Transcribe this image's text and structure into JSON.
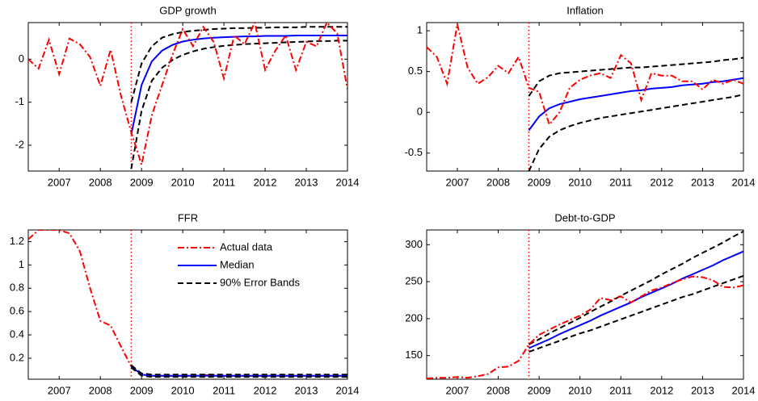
{
  "chart_data": [
    {
      "type": "line",
      "title": "GDP growth",
      "x": [
        2006.25,
        2006.5,
        2006.75,
        2007,
        2007.25,
        2007.5,
        2007.75,
        2008,
        2008.25,
        2008.5,
        2008.75,
        2009,
        2009.25,
        2009.5,
        2009.75,
        2010,
        2010.25,
        2010.5,
        2010.75,
        2011,
        2011.25,
        2011.5,
        2011.75,
        2012,
        2012.25,
        2012.5,
        2012.75,
        2013,
        2013.25,
        2013.5,
        2013.75,
        2014
      ],
      "xlim": [
        2006.25,
        2014
      ],
      "xticks": [
        2007,
        2008,
        2009,
        2010,
        2011,
        2012,
        2013,
        2014
      ],
      "ylim": [
        -2.6,
        0.85
      ],
      "yticks": [
        -2,
        -1,
        0
      ],
      "vline": 2008.75,
      "series": [
        {
          "color": "#000000",
          "style": "dashed",
          "lower": [
            null,
            null,
            null,
            null,
            null,
            null,
            null,
            null,
            null,
            null,
            -2.55,
            -1.2,
            -0.5,
            -0.2,
            -0.02,
            0.1,
            0.18,
            0.24,
            0.28,
            0.31,
            0.33,
            0.35,
            0.36,
            0.37,
            0.38,
            0.39,
            0.4,
            0.41,
            0.42,
            0.42,
            0.43,
            0.43
          ],
          "upper": [
            null,
            null,
            null,
            null,
            null,
            null,
            null,
            null,
            null,
            null,
            -1.0,
            -0.1,
            0.3,
            0.5,
            0.58,
            0.63,
            0.66,
            0.68,
            0.7,
            0.71,
            0.72,
            0.72,
            0.73,
            0.73,
            0.74,
            0.74,
            0.74,
            0.75,
            0.75,
            0.75,
            0.75,
            0.75
          ]
        },
        {
          "color": "#0000ff",
          "style": "solid",
          "values": [
            null,
            null,
            null,
            null,
            null,
            null,
            null,
            null,
            null,
            null,
            -1.75,
            -0.6,
            -0.05,
            0.2,
            0.33,
            0.41,
            0.45,
            0.48,
            0.5,
            0.51,
            0.52,
            0.53,
            0.53,
            0.54,
            0.54,
            0.54,
            0.55,
            0.55,
            0.55,
            0.55,
            0.55,
            0.55
          ]
        },
        {
          "color": "#ff0000",
          "style": "dashdot",
          "values": [
            0,
            -0.22,
            0.45,
            -0.35,
            0.48,
            0.35,
            0.05,
            -0.62,
            0.22,
            -0.85,
            -1.7,
            -2.45,
            -1.3,
            -0.6,
            0.1,
            0.7,
            0.3,
            0.75,
            0.4,
            -0.45,
            0.55,
            0.35,
            0.85,
            -0.25,
            0.2,
            0.55,
            -0.25,
            0.4,
            0.3,
            0.85,
            0.6,
            -0.7
          ]
        }
      ]
    },
    {
      "type": "line",
      "title": "Inflation",
      "x": [
        2006.25,
        2006.5,
        2006.75,
        2007,
        2007.25,
        2007.5,
        2007.75,
        2008,
        2008.25,
        2008.5,
        2008.75,
        2009,
        2009.25,
        2009.5,
        2009.75,
        2010,
        2010.25,
        2010.5,
        2010.75,
        2011,
        2011.25,
        2011.5,
        2011.75,
        2012,
        2012.25,
        2012.5,
        2012.75,
        2013,
        2013.25,
        2013.5,
        2013.75,
        2014
      ],
      "xlim": [
        2006.25,
        2014
      ],
      "xticks": [
        2007,
        2008,
        2009,
        2010,
        2011,
        2012,
        2013,
        2014
      ],
      "ylim": [
        -0.72,
        1.1
      ],
      "yticks": [
        -0.5,
        0,
        0.5,
        1
      ],
      "vline": 2008.75,
      "series": [
        {
          "color": "#000000",
          "style": "dashed",
          "lower": [
            null,
            null,
            null,
            null,
            null,
            null,
            null,
            null,
            null,
            null,
            -0.72,
            -0.45,
            -0.3,
            -0.22,
            -0.17,
            -0.13,
            -0.1,
            -0.07,
            -0.05,
            -0.03,
            -0.01,
            0.01,
            0.03,
            0.05,
            0.07,
            0.09,
            0.11,
            0.13,
            0.15,
            0.17,
            0.19,
            0.22
          ],
          "upper": [
            null,
            null,
            null,
            null,
            null,
            null,
            null,
            null,
            null,
            null,
            0.2,
            0.38,
            0.45,
            0.48,
            0.49,
            0.5,
            0.51,
            0.52,
            0.53,
            0.54,
            0.55,
            0.55,
            0.56,
            0.57,
            0.58,
            0.59,
            0.6,
            0.61,
            0.62,
            0.64,
            0.65,
            0.67
          ]
        },
        {
          "color": "#0000ff",
          "style": "solid",
          "values": [
            null,
            null,
            null,
            null,
            null,
            null,
            null,
            null,
            null,
            null,
            -0.22,
            -0.05,
            0.05,
            0.1,
            0.13,
            0.16,
            0.18,
            0.2,
            0.22,
            0.24,
            0.26,
            0.27,
            0.29,
            0.3,
            0.31,
            0.33,
            0.34,
            0.35,
            0.37,
            0.38,
            0.4,
            0.42
          ]
        },
        {
          "color": "#ff0000",
          "style": "dashdot",
          "values": [
            0.8,
            0.68,
            0.35,
            1.08,
            0.55,
            0.35,
            0.43,
            0.57,
            0.48,
            0.68,
            0.3,
            0.25,
            -0.15,
            0,
            0.3,
            0.4,
            0.45,
            0.48,
            0.42,
            0.7,
            0.6,
            0.15,
            0.48,
            0.45,
            0.45,
            0.38,
            0.38,
            0.28,
            0.4,
            0.35,
            0.4,
            0.35
          ]
        }
      ]
    },
    {
      "type": "line",
      "title": "FFR",
      "x": [
        2006.25,
        2006.5,
        2006.75,
        2007,
        2007.25,
        2007.5,
        2007.75,
        2008,
        2008.25,
        2008.5,
        2008.75,
        2009,
        2009.25,
        2009.5,
        2009.75,
        2010,
        2010.25,
        2010.5,
        2010.75,
        2011,
        2011.25,
        2011.5,
        2011.75,
        2012,
        2012.25,
        2012.5,
        2012.75,
        2013,
        2013.25,
        2013.5,
        2013.75,
        2014
      ],
      "xlim": [
        2006.25,
        2014
      ],
      "xticks": [
        2007,
        2008,
        2009,
        2010,
        2011,
        2012,
        2013,
        2014
      ],
      "ylim": [
        0.02,
        1.3
      ],
      "yticks": [
        0.2,
        0.4,
        0.6,
        0.8,
        1,
        1.2
      ],
      "vline": 2008.75,
      "legend": "upper right",
      "series": [
        {
          "name": "Actual data",
          "color": "#ff0000",
          "style": "dashdot",
          "values": [
            1.22,
            1.3,
            1.3,
            1.3,
            1.27,
            1.12,
            0.8,
            0.52,
            0.48,
            0.3,
            0.13,
            0.06,
            0.05,
            0.05,
            0.05,
            0.05,
            0.05,
            0.055,
            0.055,
            0.05,
            0.05,
            0.05,
            0.05,
            0.05,
            0.05,
            0.05,
            0.05,
            0.05,
            0.05,
            0.05,
            0.05,
            0.05
          ]
        },
        {
          "name": "Median",
          "color": "#0000ff",
          "style": "solid",
          "values": [
            null,
            null,
            null,
            null,
            null,
            null,
            null,
            null,
            null,
            null,
            0.13,
            0.06,
            0.05,
            0.05,
            0.05,
            0.05,
            0.05,
            0.05,
            0.05,
            0.05,
            0.05,
            0.05,
            0.05,
            0.05,
            0.05,
            0.05,
            0.05,
            0.05,
            0.05,
            0.05,
            0.05,
            0.05
          ]
        },
        {
          "name": "90% Error Bands",
          "color": "#000000",
          "style": "dashed",
          "lower": [
            null,
            null,
            null,
            null,
            null,
            null,
            null,
            null,
            null,
            null,
            0.12,
            0.05,
            0.04,
            0.04,
            0.04,
            0.04,
            0.04,
            0.04,
            0.04,
            0.04,
            0.04,
            0.04,
            0.04,
            0.04,
            0.04,
            0.04,
            0.04,
            0.04,
            0.04,
            0.04,
            0.04,
            0.04
          ],
          "upper": [
            null,
            null,
            null,
            null,
            null,
            null,
            null,
            null,
            null,
            null,
            0.14,
            0.07,
            0.06,
            0.06,
            0.06,
            0.06,
            0.06,
            0.06,
            0.06,
            0.06,
            0.06,
            0.06,
            0.06,
            0.06,
            0.06,
            0.06,
            0.06,
            0.06,
            0.06,
            0.06,
            0.06,
            0.06
          ]
        }
      ]
    },
    {
      "type": "line",
      "title": "Debt-to-GDP",
      "x": [
        2006.25,
        2006.5,
        2006.75,
        2007,
        2007.25,
        2007.5,
        2007.75,
        2008,
        2008.25,
        2008.5,
        2008.75,
        2009,
        2009.25,
        2009.5,
        2009.75,
        2010,
        2010.25,
        2010.5,
        2010.75,
        2011,
        2011.25,
        2011.5,
        2011.75,
        2012,
        2012.25,
        2012.5,
        2012.75,
        2013,
        2013.25,
        2013.5,
        2013.75,
        2014
      ],
      "xlim": [
        2006.25,
        2014
      ],
      "xticks": [
        2007,
        2008,
        2009,
        2010,
        2011,
        2012,
        2013,
        2014
      ],
      "ylim": [
        118,
        320
      ],
      "yticks": [
        150,
        200,
        250,
        300
      ],
      "vline": 2008.75,
      "series": [
        {
          "color": "#000000",
          "style": "dashed",
          "lower": [
            null,
            null,
            null,
            null,
            null,
            null,
            null,
            null,
            null,
            null,
            155,
            160,
            165,
            170,
            175,
            180,
            184,
            189,
            194,
            199,
            204,
            209,
            214,
            219,
            224,
            229,
            233,
            238,
            243,
            248,
            253,
            258
          ],
          "upper": [
            null,
            null,
            null,
            null,
            null,
            null,
            null,
            null,
            null,
            null,
            165,
            172,
            180,
            187,
            194,
            201,
            209,
            216,
            223,
            231,
            238,
            245,
            252,
            260,
            267,
            274,
            282,
            289,
            296,
            303,
            311,
            318
          ]
        },
        {
          "color": "#0000ff",
          "style": "solid",
          "values": [
            null,
            null,
            null,
            null,
            null,
            null,
            null,
            null,
            null,
            null,
            160,
            166,
            172,
            179,
            185,
            191,
            197,
            204,
            210,
            216,
            222,
            229,
            235,
            241,
            247,
            254,
            260,
            266,
            272,
            279,
            285,
            291
          ]
        },
        {
          "color": "#ff0000",
          "style": "dashdot",
          "values": [
            119,
            120,
            120,
            121,
            120,
            122,
            125,
            134,
            135,
            143,
            165,
            178,
            185,
            192,
            198,
            204,
            212,
            228,
            225,
            230,
            222,
            230,
            238,
            242,
            248,
            253,
            257,
            256,
            252,
            243,
            242,
            245
          ]
        }
      ]
    }
  ]
}
